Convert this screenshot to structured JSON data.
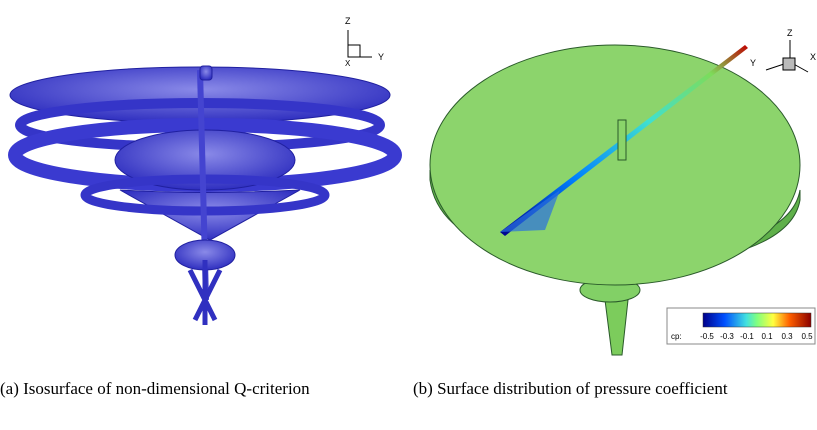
{
  "panels": [
    {
      "caption": "(a) Isosurface of non-dimensional Q-criterion",
      "axes": {
        "z": "Z",
        "y": "Y",
        "x": "X"
      }
    },
    {
      "caption": "(b) Surface distribution of pressure coefficient",
      "axes": {
        "z": "Z",
        "y": "Y",
        "x": "X"
      },
      "colorbar": {
        "label": "cp:",
        "ticks": [
          -0.5,
          -0.3,
          -0.1,
          0.1,
          0.3,
          0.5
        ]
      }
    }
  ]
}
